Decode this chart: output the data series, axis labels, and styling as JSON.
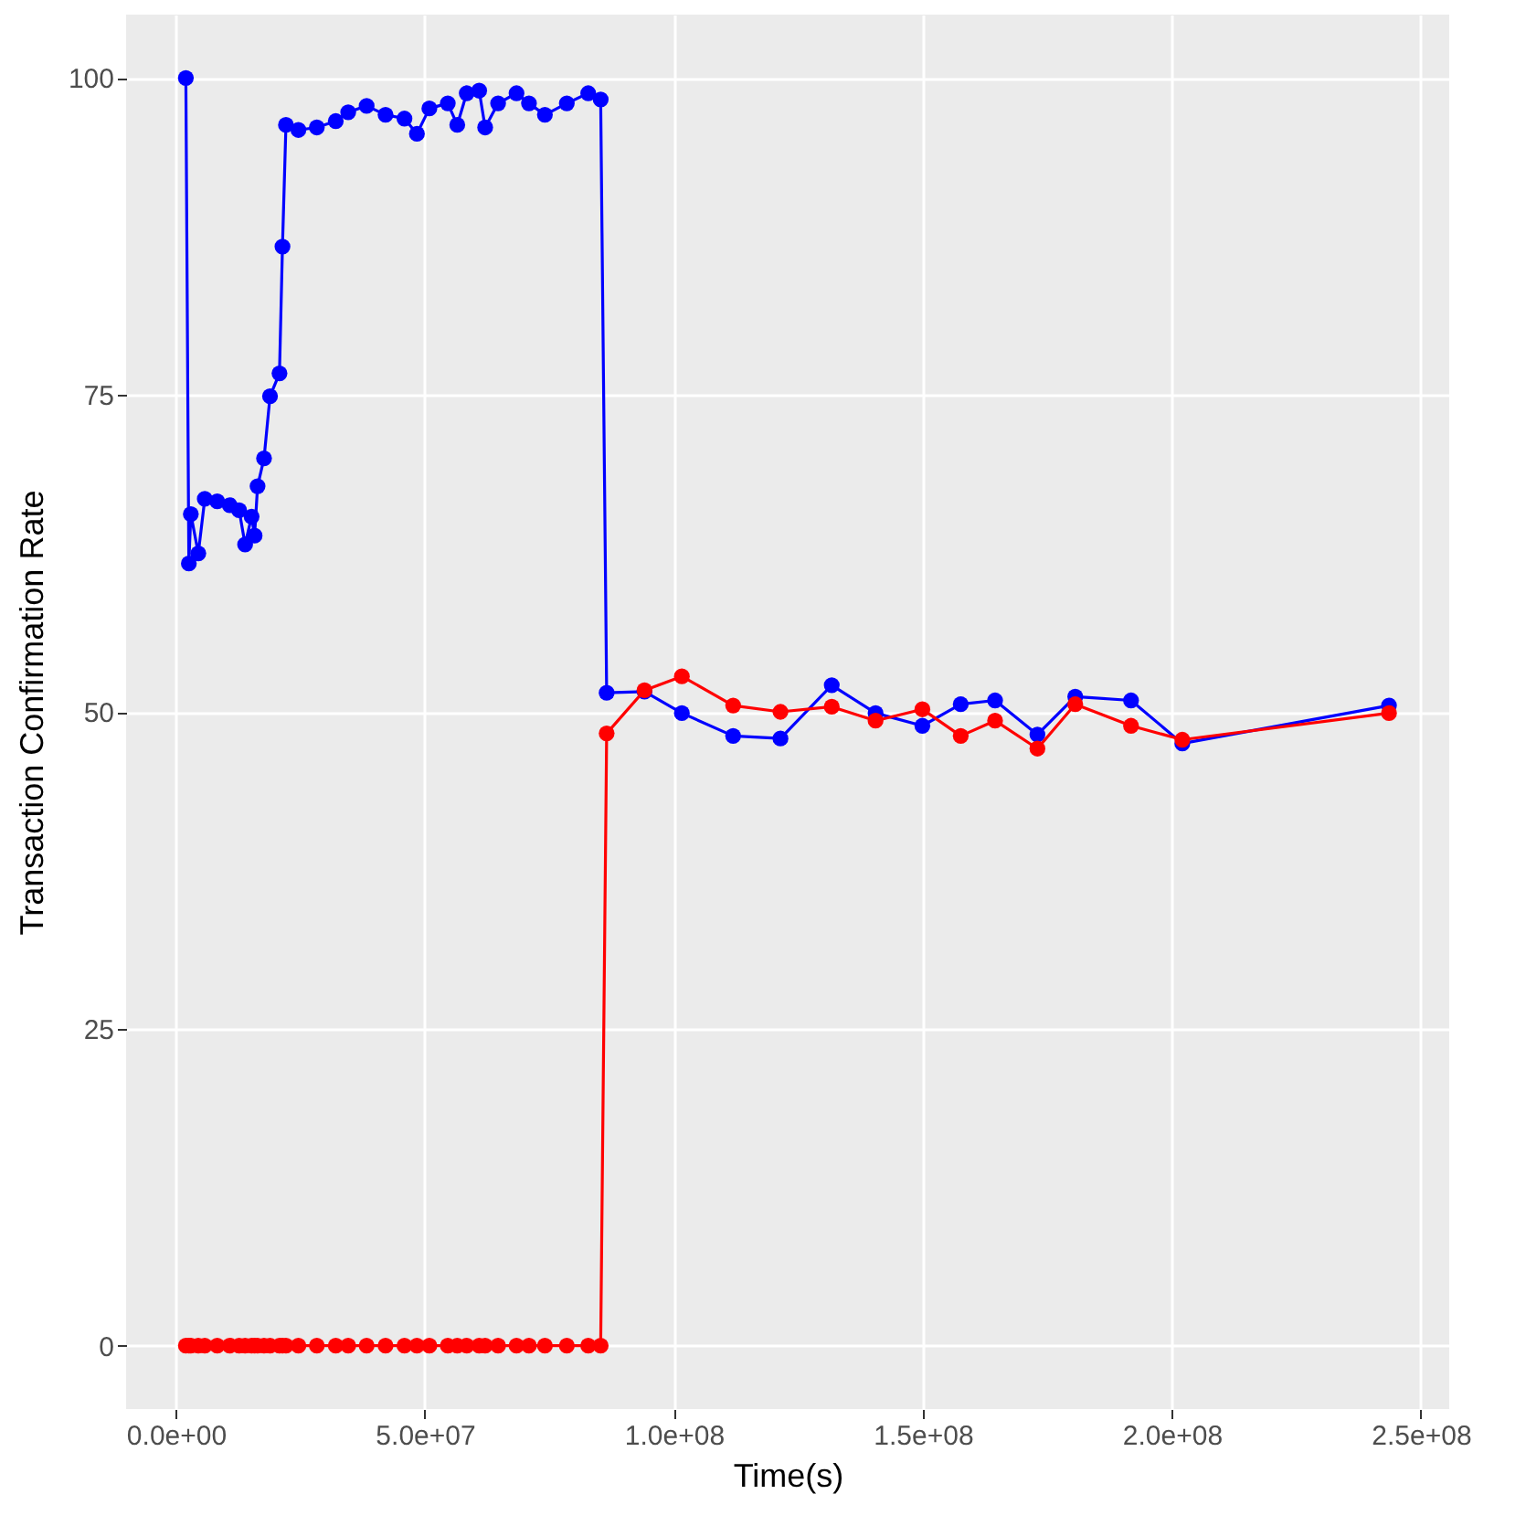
{
  "chart_data": {
    "type": "line",
    "xlabel": "Time(s)",
    "ylabel": "Transaction Confirmation Rate",
    "x": [
      2000000.0,
      2600000.0,
      3000000.0,
      4500000.0,
      5800000.0,
      8300000.0,
      10800000.0,
      12700000.0,
      13900000.0,
      15200000.0,
      15800000.0,
      16400000.0,
      17700000.0,
      18900000.0,
      20800000.0,
      21400000.0,
      22100000.0,
      24600000.0,
      28300000.0,
      32100000.0,
      34600000.0,
      38300000.0,
      42100000.0,
      45900000.0,
      48400000.0,
      50900000.0,
      54600000.0,
      56500000.0,
      58400000.0,
      60900000.0,
      62100000.0,
      64700000.0,
      68400000.0,
      70900000.0,
      74100000.0,
      78500000.0,
      82800000.0,
      85300000.0,
      86500000.0,
      94100000.0,
      101600000.0,
      111900000.0,
      121400000.0,
      131700000.0,
      140500000.0,
      149900000.0,
      157600000.0,
      164500000.0,
      173000000.0,
      180600000.0,
      191800000.0,
      202100000.0,
      243600000.0
    ],
    "series": [
      {
        "color": "#0000ff",
        "values": [
          100,
          61.7,
          65.6,
          62.5,
          66.8,
          66.6,
          66.3,
          65.9,
          63.2,
          65.4,
          63.9,
          67.8,
          70.0,
          74.9,
          76.7,
          86.7,
          96.3,
          95.9,
          96.1,
          96.6,
          97.3,
          97.8,
          97.1,
          96.8,
          95.6,
          97.6,
          98.0,
          96.3,
          98.8,
          99.0,
          96.1,
          98.0,
          98.8,
          98.0,
          97.1,
          98.0,
          98.8,
          98.3,
          51.5,
          51.6,
          49.9,
          48.1,
          47.9,
          52.1,
          49.9,
          48.9,
          50.6,
          50.9,
          48.2,
          51.2,
          50.9,
          47.5,
          50.5
        ]
      },
      {
        "color": "#ff0000",
        "values": [
          0,
          0,
          0,
          0,
          0,
          0,
          0,
          0,
          0,
          0,
          0,
          0,
          0,
          0,
          0,
          0,
          0,
          0,
          0,
          0,
          0,
          0,
          0,
          0,
          0,
          0,
          0,
          0,
          0,
          0,
          0,
          0,
          0,
          0,
          0,
          0,
          0,
          0,
          48.3,
          51.7,
          52.8,
          50.5,
          50.0,
          50.4,
          49.3,
          50.2,
          48.1,
          49.3,
          47.1,
          50.6,
          48.9,
          47.8,
          49.9
        ]
      }
    ],
    "xlim": [
      -10000000.0,
      255700000.0
    ],
    "xticks": [
      {
        "value": 0,
        "label": "0.0e+00"
      },
      {
        "value": 50000000.0,
        "label": "5.0e+07"
      },
      {
        "value": 100000000.0,
        "label": "1.0e+08"
      },
      {
        "value": 150000000.0,
        "label": "1.5e+08"
      },
      {
        "value": 200000000.0,
        "label": "2.0e+08"
      },
      {
        "value": 250000000.0,
        "label": "2.5e+08"
      }
    ],
    "ylim": [
      -5,
      105
    ],
    "yticks": [
      0,
      25,
      50,
      75,
      100
    ],
    "grid": true,
    "legend": false,
    "marker": "circle",
    "line_style": "solid"
  }
}
